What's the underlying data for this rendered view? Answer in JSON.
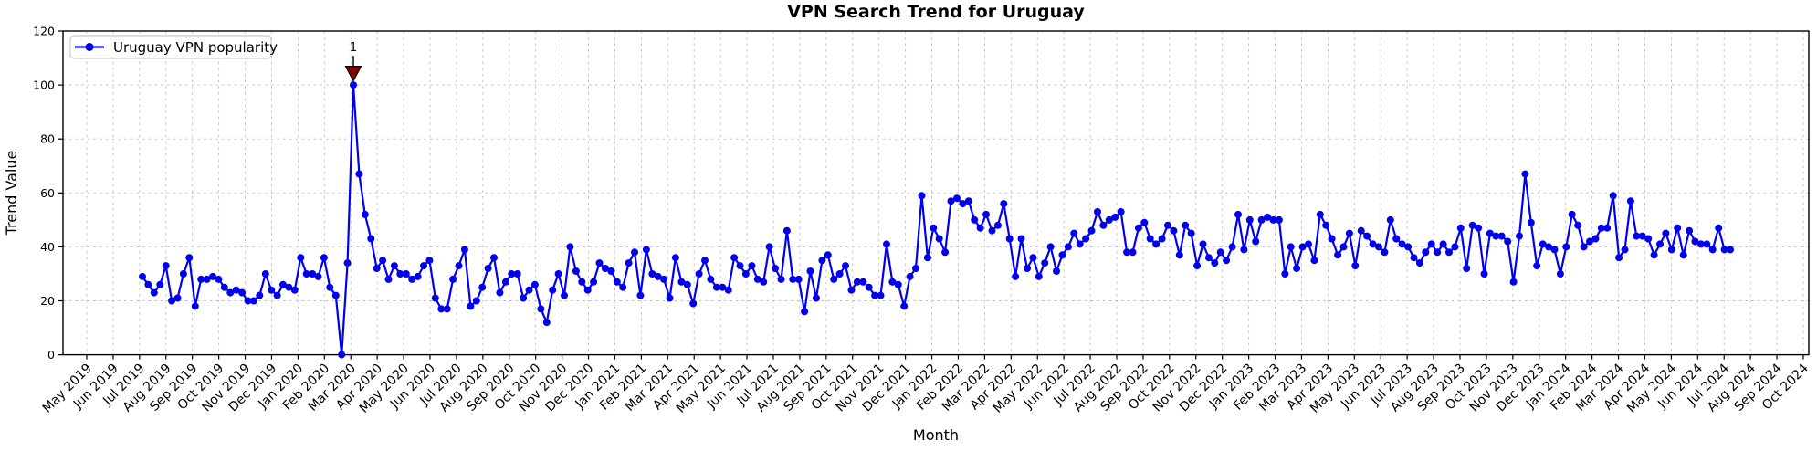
{
  "chart_data": {
    "type": "line",
    "title": "VPN Search Trend for Uruguay",
    "xlabel": "Month",
    "ylabel": "Trend Value",
    "legend": {
      "label": "Uruguay VPN popularity",
      "position": "upper left"
    },
    "grid": true,
    "ylim": [
      0,
      120
    ],
    "y_ticks": [
      0,
      20,
      40,
      60,
      80,
      100,
      120
    ],
    "x_tick_labels": [
      "May 2019",
      "Jun 2019",
      "Jul 2019",
      "Aug 2019",
      "Sep 2019",
      "Oct 2019",
      "Nov 2019",
      "Dec 2019",
      "Jan 2020",
      "Feb 2020",
      "Mar 2020",
      "Apr 2020",
      "May 2020",
      "Jun 2020",
      "Jul 2020",
      "Aug 2020",
      "Sep 2020",
      "Oct 2020",
      "Nov 2020",
      "Dec 2020",
      "Jan 2021",
      "Feb 2021",
      "Mar 2021",
      "Apr 2021",
      "May 2021",
      "Jun 2021",
      "Jul 2021",
      "Aug 2021",
      "Sep 2021",
      "Oct 2021",
      "Nov 2021",
      "Dec 2021",
      "Jan 2022",
      "Feb 2022",
      "Mar 2022",
      "Apr 2022",
      "May 2022",
      "Jun 2022",
      "Jul 2022",
      "Aug 2022",
      "Sep 2022",
      "Oct 2022",
      "Nov 2022",
      "Dec 2022",
      "Jan 2023",
      "Feb 2023",
      "Mar 2023",
      "Apr 2023",
      "May 2023",
      "Jun 2023",
      "Jul 2023",
      "Aug 2023",
      "Sep 2023",
      "Oct 2023",
      "Nov 2023",
      "Dec 2023",
      "Jan 2024",
      "Feb 2024",
      "Mar 2024",
      "Apr 2024",
      "May 2024",
      "Jun 2024",
      "Jul 2024",
      "Aug 2024",
      "Sep 2024",
      "Oct 2024"
    ],
    "series": [
      {
        "name": "Uruguay VPN popularity",
        "color": "#0000ee",
        "marker": "circle",
        "frequency": "weekly",
        "values": [
          29,
          26,
          23,
          26,
          33,
          20,
          21,
          30,
          36,
          18,
          28,
          28,
          29,
          28,
          25,
          23,
          24,
          23,
          20,
          20,
          22,
          30,
          24,
          22,
          26,
          25,
          24,
          36,
          30,
          30,
          29,
          36,
          25,
          22,
          0,
          34,
          100,
          67,
          52,
          43,
          32,
          35,
          28,
          33,
          30,
          30,
          28,
          29,
          33,
          35,
          21,
          17,
          17,
          28,
          33,
          39,
          18,
          20,
          25,
          32,
          36,
          23,
          27,
          30,
          30,
          21,
          24,
          26,
          17,
          12,
          24,
          30,
          22,
          40,
          31,
          27,
          24,
          27,
          34,
          32,
          31,
          27,
          25,
          34,
          38,
          22,
          39,
          30,
          29,
          28,
          21,
          36,
          27,
          26,
          19,
          30,
          35,
          28,
          25,
          25,
          24,
          36,
          33,
          30,
          33,
          28,
          27,
          40,
          32,
          28,
          46,
          28,
          28,
          16,
          31,
          21,
          35,
          37,
          28,
          30,
          33,
          24,
          27,
          27,
          25,
          22,
          22,
          41,
          27,
          26,
          18,
          29,
          32,
          59,
          36,
          47,
          43,
          38,
          57,
          58,
          56,
          57,
          50,
          47,
          52,
          46,
          48,
          56,
          43,
          29,
          43,
          32,
          36,
          29,
          34,
          40,
          31,
          37,
          40,
          45,
          41,
          43,
          46,
          53,
          48,
          50,
          51,
          53,
          38,
          38,
          47,
          49,
          43,
          41,
          43,
          48,
          46,
          37,
          48,
          45,
          33,
          41,
          36,
          34,
          38,
          35,
          40,
          52,
          39,
          50,
          42,
          50,
          51,
          50,
          50,
          30,
          40,
          32,
          40,
          41,
          35,
          52,
          48,
          43,
          37,
          40,
          45,
          33,
          46,
          44,
          41,
          40,
          38,
          50,
          43,
          41,
          40,
          36,
          34,
          38,
          41,
          38,
          41,
          38,
          40,
          47,
          32,
          48,
          47,
          30,
          45,
          44,
          44,
          42,
          27,
          44,
          67,
          49,
          33,
          41,
          40,
          39,
          30,
          40,
          52,
          48,
          40,
          42,
          43,
          47,
          47,
          59,
          36,
          39,
          57,
          44,
          44,
          43,
          37,
          41,
          45,
          39,
          47,
          37,
          46,
          42,
          41,
          41,
          39,
          47,
          39,
          39
        ]
      }
    ],
    "annotation": {
      "label": "1",
      "color": "#8b0000",
      "marker": "triangle-down",
      "target": "max-value-point",
      "peak_value": 100
    },
    "colors": {
      "line": "#0000ee",
      "grid": "#bdbdbd",
      "axis": "#000000",
      "annotation": "#8b0000",
      "background": "#ffffff"
    }
  }
}
